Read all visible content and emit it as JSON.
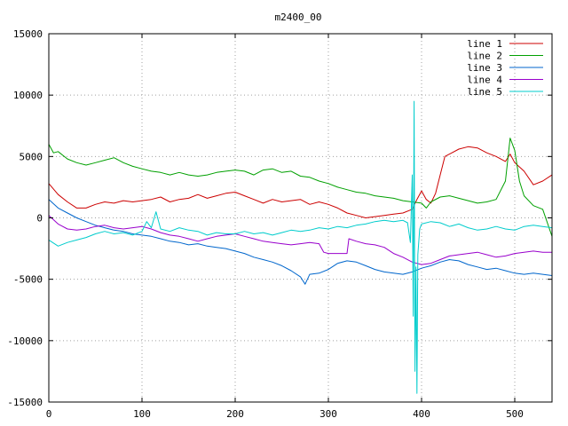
{
  "chart_data": {
    "type": "line",
    "title": "m2400_00",
    "xlabel": "",
    "ylabel": "",
    "xlim": [
      0,
      540
    ],
    "ylim": [
      -15000,
      15000
    ],
    "xticks": [
      0,
      100,
      200,
      300,
      400,
      500
    ],
    "yticks": [
      -15000,
      -10000,
      -5000,
      0,
      5000,
      10000,
      15000
    ],
    "grid": true,
    "legend_position": "top-right",
    "series": [
      {
        "name": "line 1",
        "color": "#cc0000",
        "points": [
          [
            0,
            2800
          ],
          [
            10,
            1900
          ],
          [
            20,
            1300
          ],
          [
            30,
            800
          ],
          [
            40,
            800
          ],
          [
            50,
            1100
          ],
          [
            60,
            1300
          ],
          [
            70,
            1200
          ],
          [
            80,
            1400
          ],
          [
            90,
            1300
          ],
          [
            100,
            1400
          ],
          [
            110,
            1500
          ],
          [
            120,
            1700
          ],
          [
            130,
            1300
          ],
          [
            140,
            1500
          ],
          [
            150,
            1600
          ],
          [
            160,
            1900
          ],
          [
            170,
            1600
          ],
          [
            180,
            1800
          ],
          [
            190,
            2000
          ],
          [
            200,
            2100
          ],
          [
            210,
            1800
          ],
          [
            220,
            1500
          ],
          [
            230,
            1200
          ],
          [
            240,
            1500
          ],
          [
            250,
            1300
          ],
          [
            260,
            1400
          ],
          [
            270,
            1500
          ],
          [
            280,
            1100
          ],
          [
            290,
            1300
          ],
          [
            300,
            1100
          ],
          [
            310,
            800
          ],
          [
            320,
            400
          ],
          [
            330,
            200
          ],
          [
            340,
            0
          ],
          [
            350,
            100
          ],
          [
            360,
            200
          ],
          [
            370,
            300
          ],
          [
            380,
            400
          ],
          [
            390,
            700
          ],
          [
            395,
            1500
          ],
          [
            400,
            2200
          ],
          [
            405,
            1500
          ],
          [
            410,
            1200
          ],
          [
            415,
            2000
          ],
          [
            420,
            3500
          ],
          [
            425,
            5000
          ],
          [
            430,
            5200
          ],
          [
            440,
            5600
          ],
          [
            450,
            5800
          ],
          [
            460,
            5700
          ],
          [
            470,
            5300
          ],
          [
            480,
            5000
          ],
          [
            490,
            4600
          ],
          [
            495,
            5200
          ],
          [
            500,
            4500
          ],
          [
            510,
            3800
          ],
          [
            520,
            2700
          ],
          [
            530,
            3000
          ],
          [
            540,
            3500
          ]
        ]
      },
      {
        "name": "line 2",
        "color": "#00a000",
        "points": [
          [
            0,
            6000
          ],
          [
            5,
            5300
          ],
          [
            10,
            5400
          ],
          [
            20,
            4800
          ],
          [
            30,
            4500
          ],
          [
            40,
            4300
          ],
          [
            50,
            4500
          ],
          [
            60,
            4700
          ],
          [
            70,
            4900
          ],
          [
            80,
            4500
          ],
          [
            90,
            4200
          ],
          [
            100,
            4000
          ],
          [
            110,
            3800
          ],
          [
            120,
            3700
          ],
          [
            130,
            3500
          ],
          [
            140,
            3700
          ],
          [
            150,
            3500
          ],
          [
            160,
            3400
          ],
          [
            170,
            3500
          ],
          [
            180,
            3700
          ],
          [
            190,
            3800
          ],
          [
            200,
            3900
          ],
          [
            210,
            3800
          ],
          [
            220,
            3500
          ],
          [
            230,
            3900
          ],
          [
            240,
            4000
          ],
          [
            250,
            3700
          ],
          [
            260,
            3800
          ],
          [
            270,
            3400
          ],
          [
            280,
            3300
          ],
          [
            290,
            3000
          ],
          [
            300,
            2800
          ],
          [
            310,
            2500
          ],
          [
            320,
            2300
          ],
          [
            330,
            2100
          ],
          [
            340,
            2000
          ],
          [
            350,
            1800
          ],
          [
            360,
            1700
          ],
          [
            370,
            1600
          ],
          [
            380,
            1400
          ],
          [
            390,
            1300
          ],
          [
            400,
            1200
          ],
          [
            405,
            800
          ],
          [
            410,
            1300
          ],
          [
            420,
            1700
          ],
          [
            430,
            1800
          ],
          [
            440,
            1600
          ],
          [
            450,
            1400
          ],
          [
            460,
            1200
          ],
          [
            470,
            1300
          ],
          [
            480,
            1500
          ],
          [
            490,
            3000
          ],
          [
            495,
            6500
          ],
          [
            500,
            5500
          ],
          [
            505,
            3000
          ],
          [
            510,
            1800
          ],
          [
            520,
            1000
          ],
          [
            530,
            700
          ],
          [
            540,
            -1500
          ]
        ]
      },
      {
        "name": "line 3",
        "color": "#0066cc",
        "points": [
          [
            0,
            1500
          ],
          [
            10,
            800
          ],
          [
            20,
            400
          ],
          [
            30,
            0
          ],
          [
            40,
            -300
          ],
          [
            50,
            -600
          ],
          [
            60,
            -800
          ],
          [
            70,
            -1000
          ],
          [
            80,
            -1100
          ],
          [
            90,
            -1300
          ],
          [
            100,
            -1400
          ],
          [
            110,
            -1500
          ],
          [
            120,
            -1700
          ],
          [
            130,
            -1900
          ],
          [
            140,
            -2000
          ],
          [
            150,
            -2200
          ],
          [
            160,
            -2100
          ],
          [
            170,
            -2300
          ],
          [
            180,
            -2400
          ],
          [
            190,
            -2500
          ],
          [
            200,
            -2700
          ],
          [
            210,
            -2900
          ],
          [
            220,
            -3200
          ],
          [
            230,
            -3400
          ],
          [
            240,
            -3600
          ],
          [
            250,
            -3900
          ],
          [
            260,
            -4300
          ],
          [
            270,
            -4800
          ],
          [
            275,
            -5400
          ],
          [
            280,
            -4600
          ],
          [
            290,
            -4500
          ],
          [
            300,
            -4200
          ],
          [
            310,
            -3700
          ],
          [
            320,
            -3500
          ],
          [
            330,
            -3600
          ],
          [
            340,
            -3900
          ],
          [
            350,
            -4200
          ],
          [
            360,
            -4400
          ],
          [
            370,
            -4500
          ],
          [
            380,
            -4600
          ],
          [
            390,
            -4400
          ],
          [
            400,
            -4100
          ],
          [
            410,
            -3900
          ],
          [
            420,
            -3600
          ],
          [
            430,
            -3400
          ],
          [
            440,
            -3500
          ],
          [
            450,
            -3800
          ],
          [
            460,
            -4000
          ],
          [
            470,
            -4200
          ],
          [
            480,
            -4100
          ],
          [
            490,
            -4300
          ],
          [
            500,
            -4500
          ],
          [
            510,
            -4600
          ],
          [
            520,
            -4500
          ],
          [
            530,
            -4600
          ],
          [
            540,
            -4700
          ]
        ]
      },
      {
        "name": "line 4",
        "color": "#9900cc",
        "points": [
          [
            0,
            200
          ],
          [
            10,
            -500
          ],
          [
            20,
            -900
          ],
          [
            30,
            -1000
          ],
          [
            40,
            -900
          ],
          [
            50,
            -700
          ],
          [
            60,
            -600
          ],
          [
            70,
            -800
          ],
          [
            80,
            -900
          ],
          [
            90,
            -800
          ],
          [
            100,
            -700
          ],
          [
            110,
            -900
          ],
          [
            120,
            -1200
          ],
          [
            130,
            -1400
          ],
          [
            140,
            -1500
          ],
          [
            150,
            -1700
          ],
          [
            160,
            -1900
          ],
          [
            170,
            -1700
          ],
          [
            180,
            -1500
          ],
          [
            190,
            -1400
          ],
          [
            200,
            -1300
          ],
          [
            210,
            -1500
          ],
          [
            220,
            -1700
          ],
          [
            230,
            -1900
          ],
          [
            240,
            -2000
          ],
          [
            250,
            -2100
          ],
          [
            260,
            -2200
          ],
          [
            270,
            -2100
          ],
          [
            280,
            -2000
          ],
          [
            290,
            -2100
          ],
          [
            295,
            -2800
          ],
          [
            300,
            -2900
          ],
          [
            310,
            -2900
          ],
          [
            320,
            -2900
          ],
          [
            322,
            -1700
          ],
          [
            330,
            -1900
          ],
          [
            340,
            -2100
          ],
          [
            350,
            -2200
          ],
          [
            360,
            -2400
          ],
          [
            370,
            -2900
          ],
          [
            380,
            -3200
          ],
          [
            390,
            -3600
          ],
          [
            400,
            -3800
          ],
          [
            410,
            -3700
          ],
          [
            420,
            -3400
          ],
          [
            430,
            -3100
          ],
          [
            440,
            -3000
          ],
          [
            450,
            -2900
          ],
          [
            460,
            -2800
          ],
          [
            470,
            -3000
          ],
          [
            480,
            -3200
          ],
          [
            490,
            -3100
          ],
          [
            500,
            -2900
          ],
          [
            510,
            -2800
          ],
          [
            520,
            -2700
          ],
          [
            530,
            -2800
          ],
          [
            540,
            -2800
          ]
        ]
      },
      {
        "name": "line 5",
        "color": "#00cccc",
        "points": [
          [
            0,
            -1800
          ],
          [
            10,
            -2300
          ],
          [
            20,
            -2000
          ],
          [
            30,
            -1800
          ],
          [
            40,
            -1600
          ],
          [
            50,
            -1300
          ],
          [
            60,
            -1100
          ],
          [
            70,
            -1300
          ],
          [
            80,
            -1200
          ],
          [
            90,
            -1400
          ],
          [
            100,
            -1100
          ],
          [
            105,
            -300
          ],
          [
            110,
            -800
          ],
          [
            115,
            500
          ],
          [
            120,
            -900
          ],
          [
            130,
            -1100
          ],
          [
            140,
            -800
          ],
          [
            150,
            -1000
          ],
          [
            160,
            -1100
          ],
          [
            170,
            -1400
          ],
          [
            180,
            -1200
          ],
          [
            190,
            -1300
          ],
          [
            200,
            -1300
          ],
          [
            210,
            -1100
          ],
          [
            220,
            -1300
          ],
          [
            230,
            -1200
          ],
          [
            240,
            -1400
          ],
          [
            250,
            -1200
          ],
          [
            260,
            -1000
          ],
          [
            270,
            -1100
          ],
          [
            280,
            -1000
          ],
          [
            290,
            -800
          ],
          [
            300,
            -900
          ],
          [
            310,
            -700
          ],
          [
            320,
            -800
          ],
          [
            330,
            -600
          ],
          [
            340,
            -500
          ],
          [
            350,
            -300
          ],
          [
            360,
            -200
          ],
          [
            370,
            -300
          ],
          [
            380,
            -200
          ],
          [
            385,
            -400
          ],
          [
            388,
            -2000
          ],
          [
            390,
            3500
          ],
          [
            391,
            -8000
          ],
          [
            392,
            9500
          ],
          [
            393,
            -12500
          ],
          [
            394,
            -4000
          ],
          [
            395,
            -14300
          ],
          [
            396,
            -3000
          ],
          [
            398,
            -900
          ],
          [
            400,
            -500
          ],
          [
            410,
            -300
          ],
          [
            420,
            -400
          ],
          [
            430,
            -700
          ],
          [
            440,
            -500
          ],
          [
            450,
            -800
          ],
          [
            460,
            -1000
          ],
          [
            470,
            -900
          ],
          [
            480,
            -700
          ],
          [
            490,
            -900
          ],
          [
            500,
            -1000
          ],
          [
            510,
            -700
          ],
          [
            520,
            -600
          ],
          [
            530,
            -700
          ],
          [
            540,
            -800
          ]
        ]
      }
    ]
  }
}
